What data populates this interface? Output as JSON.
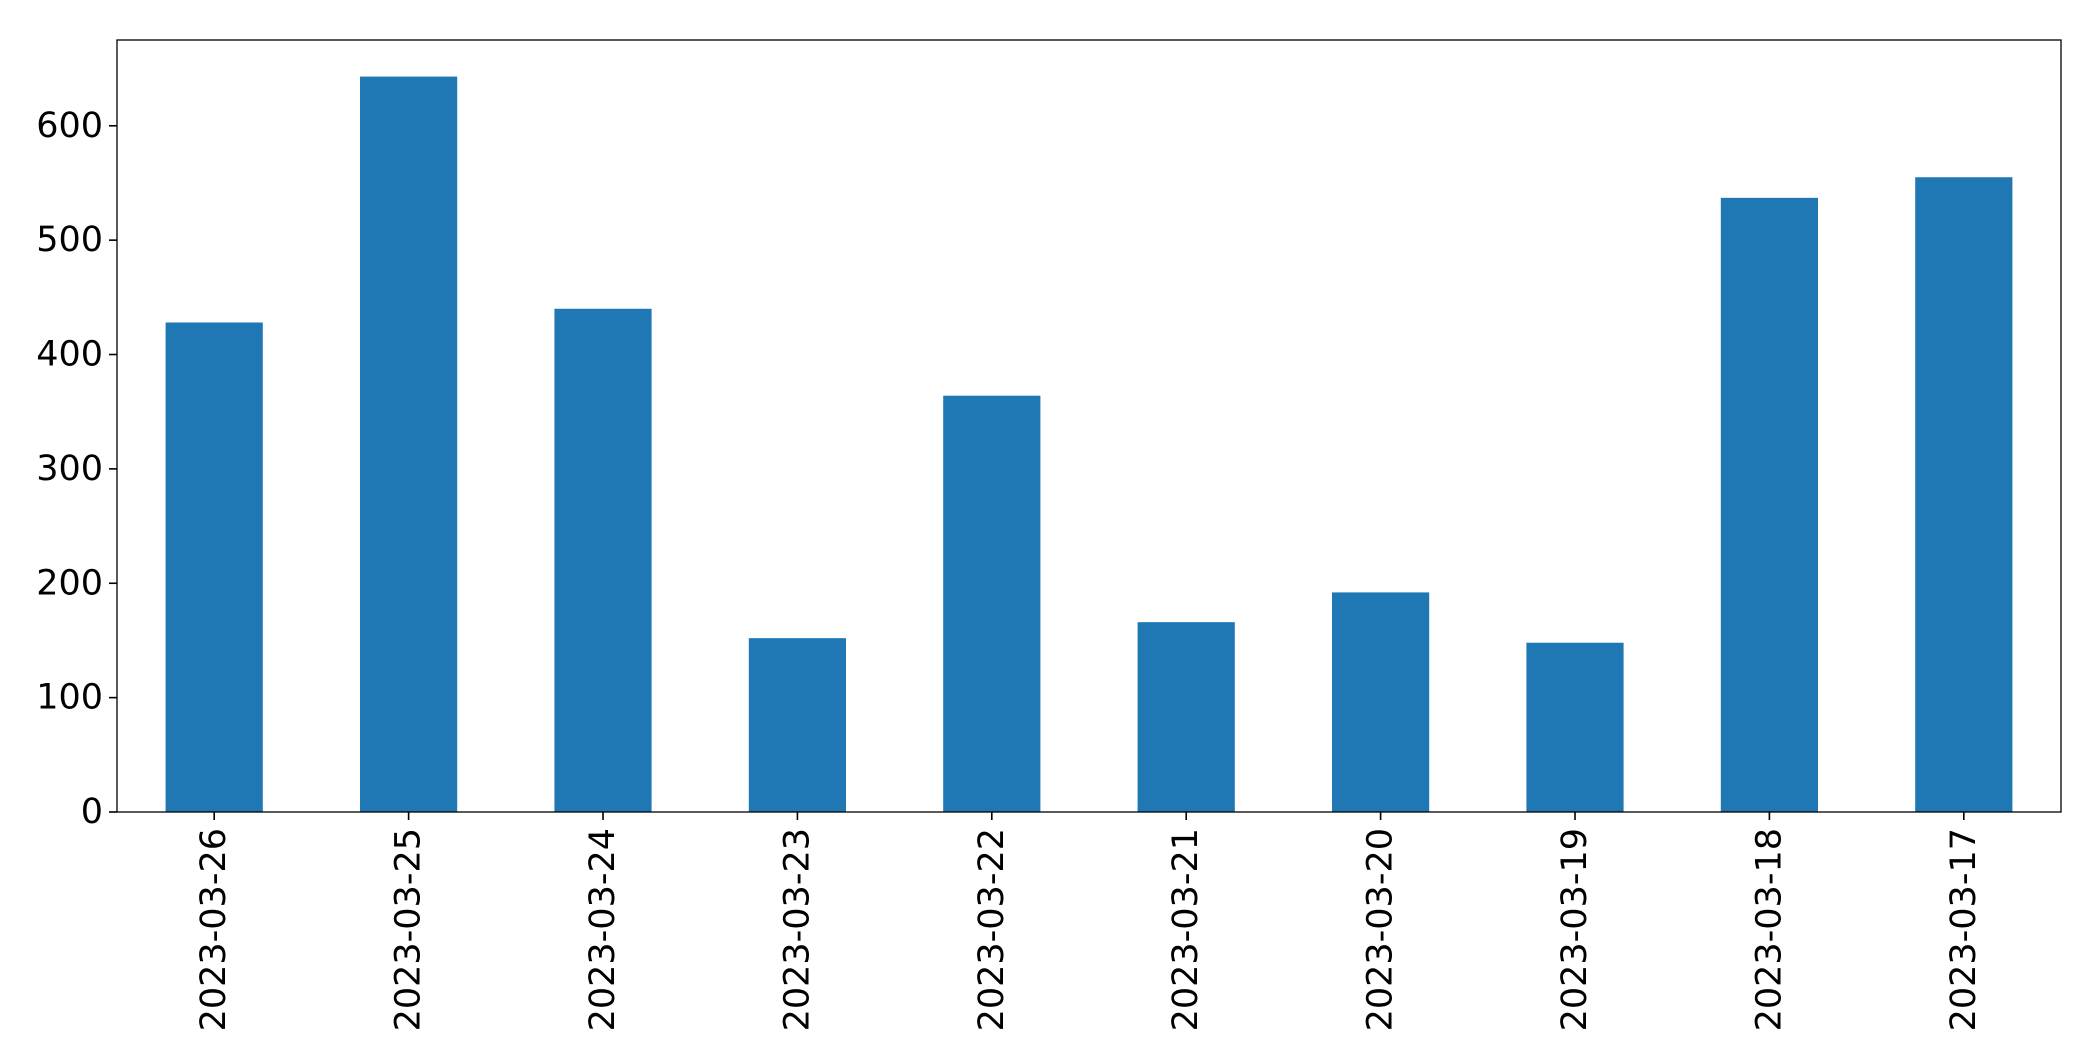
{
  "chart_data": {
    "type": "bar",
    "title": "",
    "xlabel": "",
    "ylabel": "",
    "categories": [
      "2023-03-26",
      "2023-03-25",
      "2023-03-24",
      "2023-03-23",
      "2023-03-22",
      "2023-03-21",
      "2023-03-20",
      "2023-03-19",
      "2023-03-18",
      "2023-03-17"
    ],
    "values": [
      428,
      643,
      440,
      152,
      364,
      166,
      192,
      148,
      537,
      555
    ],
    "ylim": [
      0,
      675
    ],
    "yticks": [
      "0",
      "100",
      "200",
      "300",
      "400",
      "500",
      "600"
    ],
    "bar_color": "#1f77b4",
    "grid": false,
    "legend": "none"
  }
}
